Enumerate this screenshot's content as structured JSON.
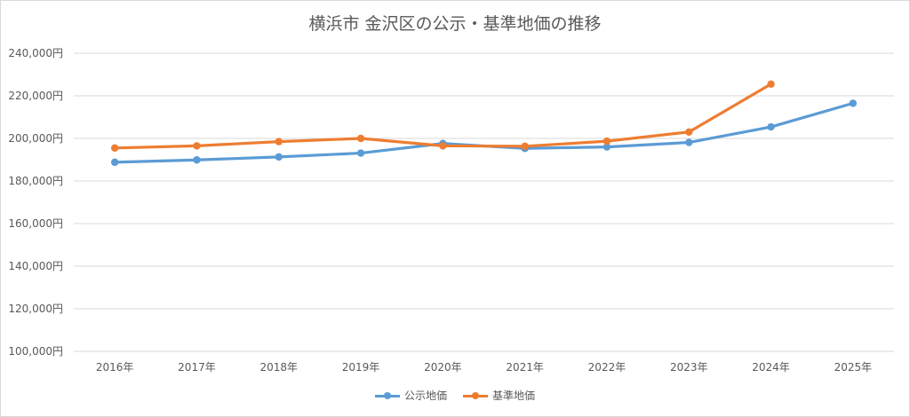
{
  "colors": {
    "series_1": "#5b9bd5",
    "series_2": "#ed7d31",
    "grid": "#d9d9d9",
    "text": "#595959"
  },
  "chart_data": {
    "type": "line",
    "title": "横浜市 金沢区の公示・基準地価の推移",
    "xlabel": "",
    "ylabel": "",
    "categories": [
      "2016年",
      "2017年",
      "2018年",
      "2019年",
      "2020年",
      "2021年",
      "2022年",
      "2023年",
      "2024年",
      "2025年"
    ],
    "ylim": [
      100000,
      240000
    ],
    "yticks": [
      100000,
      120000,
      140000,
      160000,
      180000,
      200000,
      220000,
      240000
    ],
    "ytick_labels": [
      "100,000円",
      "120,000円",
      "140,000円",
      "160,000円",
      "180,000円",
      "200,000円",
      "220,000円",
      "240,000円"
    ],
    "grid": true,
    "legend_position": "bottom",
    "series": [
      {
        "name": "公示地価",
        "color": "#5b9bd5",
        "values": [
          188800,
          189900,
          191300,
          193100,
          197600,
          195300,
          196000,
          198100,
          205400,
          216500
        ]
      },
      {
        "name": "基準地価",
        "color": "#ed7d31",
        "values": [
          195500,
          196500,
          198500,
          200000,
          196500,
          196300,
          198700,
          203000,
          225500,
          null
        ]
      }
    ]
  }
}
